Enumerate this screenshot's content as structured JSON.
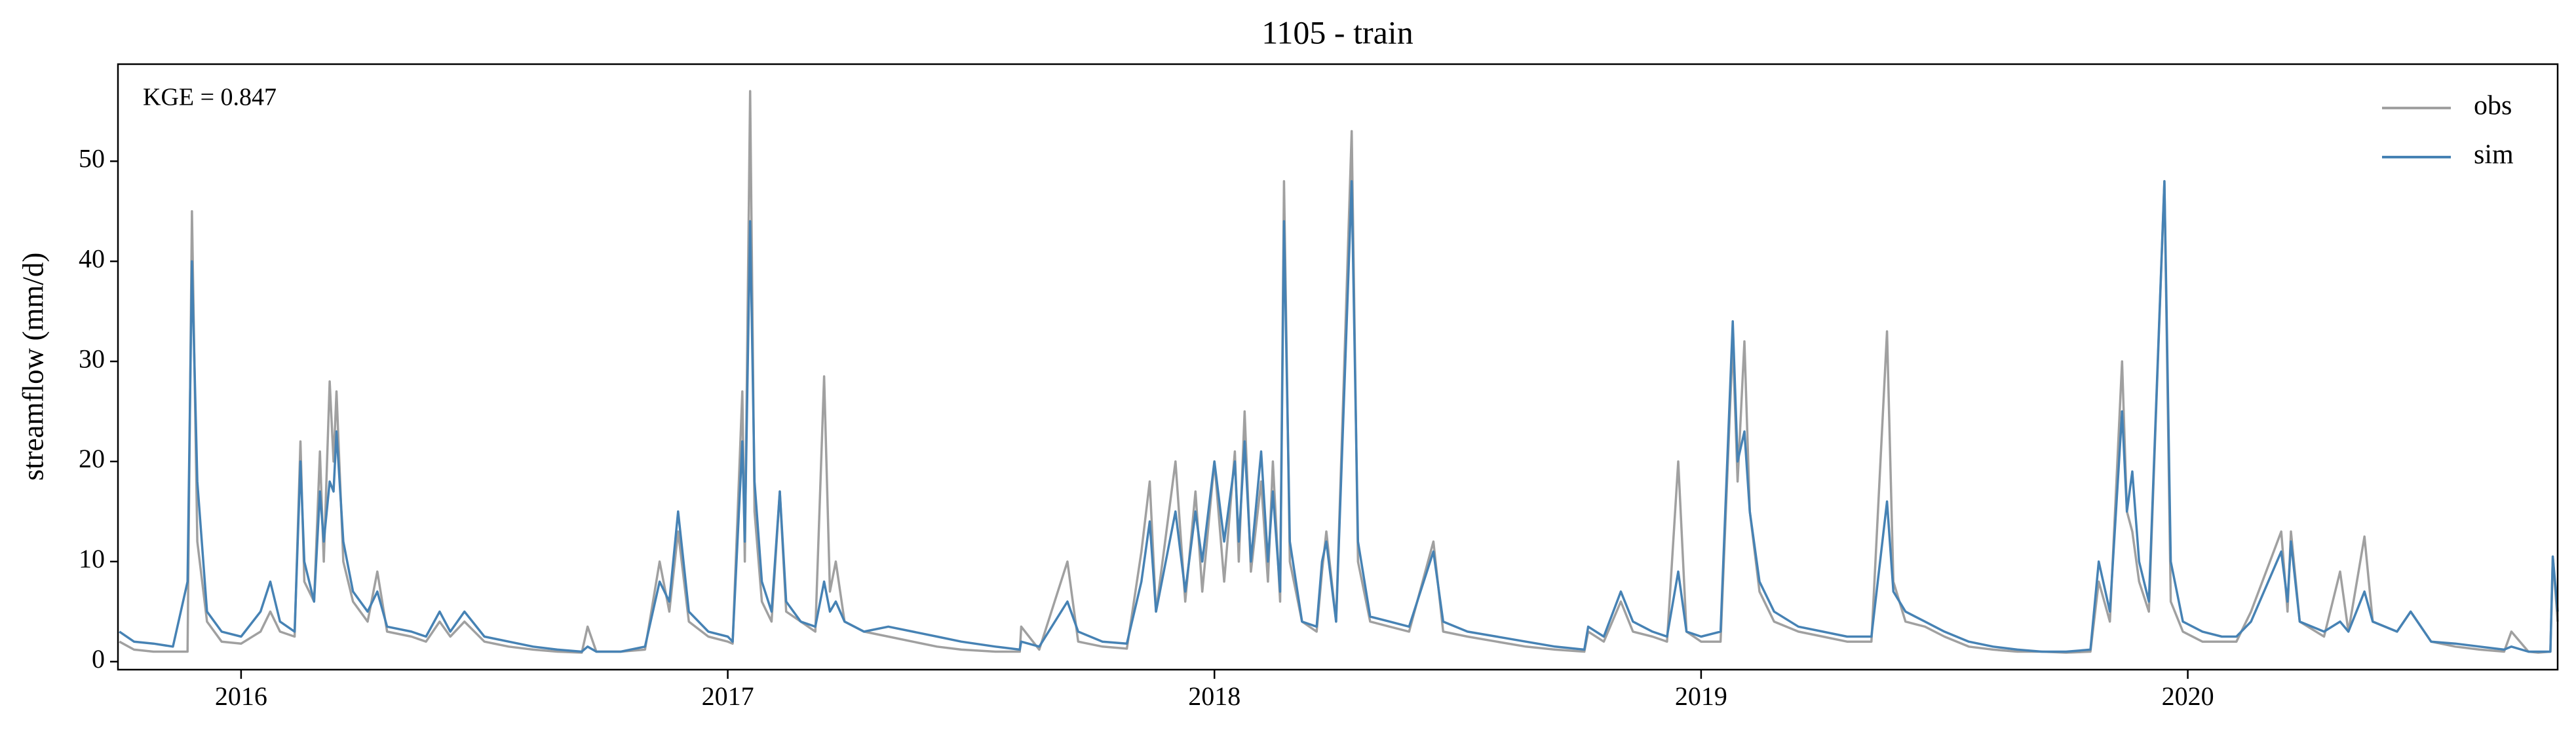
{
  "chart_data": {
    "type": "line",
    "title": "1105 - train",
    "ylabel": "streamflow (mm/d)",
    "annotation": "KGE = 0.847",
    "legend": "upper right",
    "xlim": [
      2015.747,
      2020.76
    ],
    "xticks": [
      2016,
      2017,
      2018,
      2019,
      2020
    ],
    "ylim": [
      -0.8,
      59.7
    ],
    "yticks": [
      0,
      10,
      20,
      30,
      40,
      50
    ],
    "x": [
      2015.75,
      2015.78,
      2015.82,
      2015.86,
      2015.89,
      2015.899,
      2015.91,
      2015.93,
      2015.96,
      2016.0,
      2016.04,
      2016.06,
      2016.08,
      2016.11,
      2016.122,
      2016.13,
      2016.15,
      2016.162,
      2016.17,
      2016.182,
      2016.19,
      2016.196,
      2016.21,
      2016.23,
      2016.26,
      2016.28,
      2016.3,
      2016.35,
      2016.38,
      2016.408,
      2016.43,
      2016.459,
      2016.5,
      2016.55,
      2016.6,
      2016.65,
      2016.7,
      2016.712,
      2016.73,
      2016.78,
      2016.83,
      2016.86,
      2016.88,
      2016.898,
      2016.92,
      2016.96,
      2017.0,
      2017.01,
      2017.03,
      2017.035,
      2017.046,
      2017.055,
      2017.07,
      2017.09,
      2017.107,
      2017.12,
      2017.15,
      2017.18,
      2017.198,
      2017.21,
      2017.222,
      2017.24,
      2017.28,
      2017.33,
      2017.38,
      2017.43,
      2017.48,
      2017.55,
      2017.6,
      2017.603,
      2017.64,
      2017.698,
      2017.72,
      2017.77,
      2017.82,
      2017.85,
      2017.867,
      2017.88,
      2017.92,
      2017.94,
      2017.961,
      2017.975,
      2018.0,
      2018.02,
      2018.042,
      2018.05,
      2018.062,
      2018.075,
      2018.096,
      2018.11,
      2018.12,
      2018.135,
      2018.143,
      2018.155,
      2018.18,
      2018.21,
      2018.221,
      2018.23,
      2018.25,
      2018.282,
      2018.295,
      2018.32,
      2018.36,
      2018.4,
      2018.45,
      2018.47,
      2018.52,
      2018.58,
      2018.64,
      2018.7,
      2018.76,
      2018.768,
      2018.8,
      2018.835,
      2018.86,
      2018.9,
      2018.93,
      2018.953,
      2018.97,
      2019.0,
      2019.04,
      2019.065,
      2019.075,
      2019.089,
      2019.1,
      2019.12,
      2019.15,
      2019.2,
      2019.25,
      2019.3,
      2019.35,
      2019.382,
      2019.395,
      2019.42,
      2019.46,
      2019.5,
      2019.55,
      2019.6,
      2019.65,
      2019.7,
      2019.75,
      2019.8,
      2019.817,
      2019.84,
      2019.865,
      2019.875,
      2019.886,
      2019.9,
      2019.92,
      2019.952,
      2019.965,
      2019.99,
      2020.03,
      2020.07,
      2020.1,
      2020.13,
      2020.192,
      2020.205,
      2020.212,
      2020.23,
      2020.28,
      2020.313,
      2020.33,
      2020.363,
      2020.38,
      2020.43,
      2020.458,
      2020.5,
      2020.55,
      2020.6,
      2020.65,
      2020.665,
      2020.7,
      2020.72,
      2020.745,
      2020.75,
      2020.76
    ],
    "series": [
      {
        "name": "obs",
        "color": "#a0a0a0",
        "values": [
          2,
          1.2,
          1,
          1,
          1,
          45,
          12,
          4,
          2,
          1.8,
          3,
          5,
          3,
          2.5,
          22,
          8,
          6,
          21,
          10,
          28,
          20,
          27,
          10,
          6,
          4,
          9,
          3,
          2.5,
          2,
          4,
          2.5,
          4,
          2,
          1.5,
          1.2,
          1,
          0.9,
          3.5,
          1,
          1,
          1.2,
          10,
          5,
          13,
          4,
          2.5,
          2,
          1.8,
          27,
          10,
          57,
          15,
          6,
          4,
          17,
          5,
          4,
          3,
          28.5,
          7,
          10,
          4,
          3,
          2.5,
          2,
          1.5,
          1.2,
          1,
          1,
          3.5,
          1.2,
          10,
          2,
          1.5,
          1.3,
          11,
          18,
          5,
          20,
          6,
          17,
          7,
          20,
          8,
          21,
          10,
          25,
          9,
          18,
          8,
          20,
          6,
          48,
          10,
          4,
          3,
          9,
          13,
          4,
          53,
          10,
          4,
          3.5,
          3,
          12,
          3,
          2.5,
          2,
          1.5,
          1.2,
          1,
          3,
          2,
          6,
          3,
          2.5,
          2,
          20,
          3,
          2,
          2,
          32,
          18,
          32,
          15,
          7,
          4,
          3,
          2.5,
          2,
          2,
          33,
          8,
          4,
          3.5,
          2.5,
          1.5,
          1.2,
          1,
          1,
          0.9,
          1,
          8,
          4,
          30,
          15,
          13,
          8,
          5,
          48,
          6,
          3,
          2,
          2,
          2,
          5,
          13,
          5,
          13,
          4,
          2.5,
          9,
          3,
          12.5,
          4,
          3,
          5,
          2,
          1.5,
          1.2,
          1,
          3,
          1,
          0.9,
          1,
          10.5,
          4
        ]
      },
      {
        "name": "sim",
        "color": "#4682b4",
        "values": [
          3,
          2,
          1.8,
          1.5,
          8,
          40,
          18,
          5,
          3,
          2.5,
          5,
          8,
          4,
          3,
          20,
          10,
          6,
          17,
          12,
          18,
          17,
          23,
          12,
          7,
          5,
          7,
          3.5,
          3,
          2.5,
          5,
          3,
          5,
          2.5,
          2,
          1.5,
          1.2,
          1,
          1.5,
          1,
          1,
          1.5,
          8,
          6,
          15,
          5,
          3,
          2.5,
          2,
          22,
          12,
          44,
          18,
          8,
          5,
          17,
          6,
          4,
          3.5,
          8,
          5,
          6,
          4,
          3,
          3.5,
          3,
          2.5,
          2,
          1.5,
          1.2,
          2,
          1.5,
          6,
          3,
          2,
          1.8,
          8,
          14,
          5,
          15,
          7,
          15,
          10,
          20,
          12,
          20,
          12,
          22,
          10,
          21,
          10,
          17,
          7,
          44,
          12,
          4,
          3.5,
          10,
          12,
          4,
          48,
          12,
          4.5,
          4,
          3.5,
          11,
          4,
          3,
          2.5,
          2,
          1.5,
          1.2,
          3.5,
          2.5,
          7,
          4,
          3,
          2.5,
          9,
          3,
          2.5,
          3,
          34,
          20,
          23,
          15,
          8,
          5,
          3.5,
          3,
          2.5,
          2.5,
          16,
          7,
          5,
          4,
          3,
          2,
          1.5,
          1.2,
          1,
          1,
          1.2,
          10,
          5,
          25,
          15,
          19,
          10,
          6,
          48,
          10,
          4,
          3,
          2.5,
          2.5,
          4,
          11,
          6,
          12,
          4,
          3,
          4,
          3,
          7,
          4,
          3,
          5,
          2,
          1.8,
          1.5,
          1.2,
          1.5,
          1,
          1,
          1,
          10.5,
          5
        ]
      }
    ]
  }
}
